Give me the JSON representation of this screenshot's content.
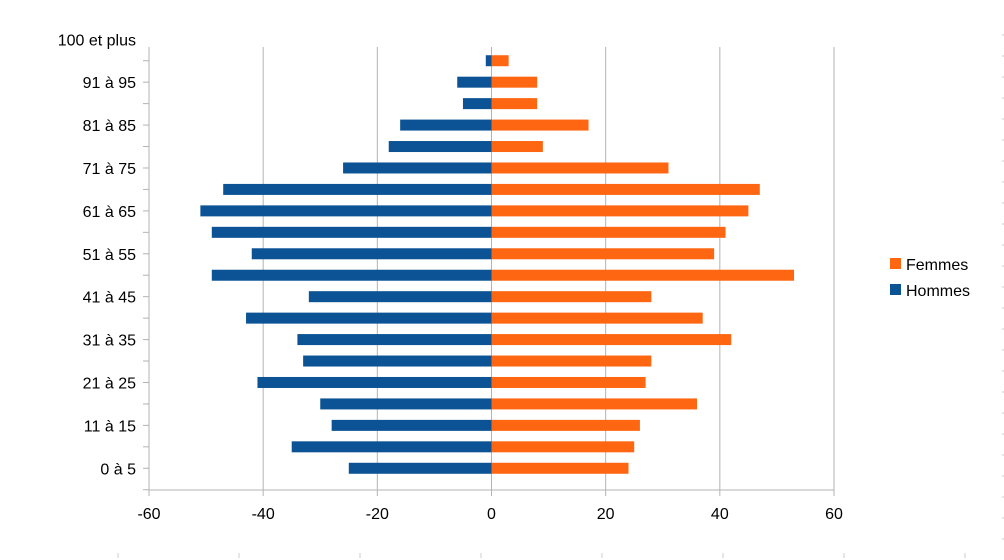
{
  "chart_data": {
    "type": "bar",
    "orientation": "horizontal",
    "layout": "population-pyramid",
    "category_labels": [
      "0 à 5",
      "11 à 15",
      "21 à 25",
      "31 à 35",
      "41 à 45",
      "51 à 55",
      "61 à 65",
      "71 à 75",
      "81 à 85",
      "91 à 95",
      "100 et plus"
    ],
    "bar_count": 20,
    "series": [
      {
        "name": "Femmes",
        "color": "#ff6611",
        "values": [
          24,
          25,
          26,
          36,
          27,
          28,
          42,
          37,
          28,
          53,
          39,
          41,
          45,
          47,
          31,
          9,
          17,
          8,
          8,
          3
        ]
      },
      {
        "name": "Hommes",
        "color": "#0b5394",
        "values": [
          -25,
          -35,
          -28,
          -30,
          -41,
          -33,
          -34,
          -43,
          -32,
          -49,
          -42,
          -49,
          -51,
          -47,
          -26,
          -18,
          -16,
          -5,
          -6,
          -1
        ]
      }
    ],
    "xlim": [
      -60,
      60
    ],
    "x_ticks": [
      -60,
      -40,
      -20,
      0,
      20,
      40,
      60
    ],
    "grid": "vertical",
    "legend": "right"
  }
}
